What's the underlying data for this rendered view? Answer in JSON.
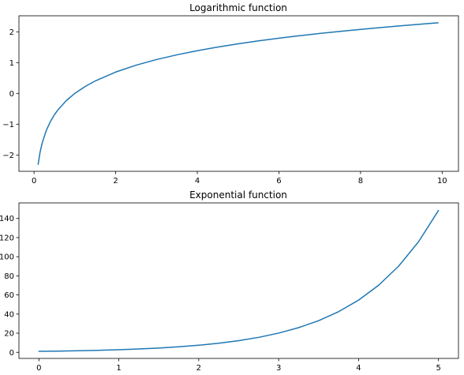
{
  "chart_data": [
    {
      "type": "line",
      "title": "Logarithmic function",
      "xlabel": "",
      "ylabel": "",
      "xlim": [
        -0.37,
        10.4
      ],
      "ylim": [
        -2.53,
        2.52
      ],
      "xticks": [
        0,
        2,
        4,
        6,
        8,
        10
      ],
      "yticks": [
        -2,
        -1,
        0,
        1,
        2
      ],
      "xtick_labels": [
        "0",
        "2",
        "4",
        "6",
        "8",
        "10"
      ],
      "ytick_labels": [
        "−2",
        "−1",
        "0",
        "1",
        "2"
      ],
      "grid": false,
      "color": "#1f77b4",
      "series": [
        {
          "x": [
            0.1,
            0.15,
            0.2,
            0.3,
            0.4,
            0.5,
            0.6,
            0.8,
            1.0,
            1.25,
            1.5,
            2.0,
            2.5,
            3.0,
            3.5,
            4.0,
            4.5,
            5.0,
            5.5,
            6.0,
            6.5,
            7.0,
            7.5,
            8.0,
            8.5,
            9.0,
            9.5,
            9.9
          ],
          "y": [
            -2.303,
            -1.897,
            -1.609,
            -1.204,
            -0.916,
            -0.693,
            -0.511,
            -0.223,
            0.0,
            0.223,
            0.405,
            0.693,
            0.916,
            1.099,
            1.253,
            1.386,
            1.504,
            1.609,
            1.705,
            1.792,
            1.872,
            1.946,
            2.015,
            2.079,
            2.14,
            2.197,
            2.251,
            2.293
          ]
        }
      ]
    },
    {
      "type": "line",
      "title": "Exponential function",
      "xlabel": "",
      "ylabel": "",
      "xlim": [
        -0.25,
        5.25
      ],
      "ylim": [
        -6.4,
        156.3
      ],
      "xticks": [
        0,
        1,
        2,
        3,
        4,
        5
      ],
      "yticks": [
        0,
        20,
        40,
        60,
        80,
        100,
        120,
        140
      ],
      "xtick_labels": [
        "0",
        "1",
        "2",
        "3",
        "4",
        "5"
      ],
      "ytick_labels": [
        "0",
        "20",
        "40",
        "60",
        "80",
        "100",
        "120",
        "140"
      ],
      "grid": false,
      "color": "#1f77b4",
      "series": [
        {
          "x": [
            0,
            0.25,
            0.5,
            0.75,
            1.0,
            1.25,
            1.5,
            1.75,
            2.0,
            2.25,
            2.5,
            2.75,
            3.0,
            3.25,
            3.5,
            3.75,
            4.0,
            4.25,
            4.5,
            4.75,
            5.0
          ],
          "y": [
            1.0,
            1.284,
            1.649,
            2.117,
            2.718,
            3.49,
            4.482,
            5.755,
            7.389,
            9.488,
            12.18,
            15.64,
            20.09,
            25.79,
            33.12,
            42.52,
            54.6,
            70.11,
            90.02,
            115.6,
            148.4
          ]
        }
      ]
    }
  ]
}
